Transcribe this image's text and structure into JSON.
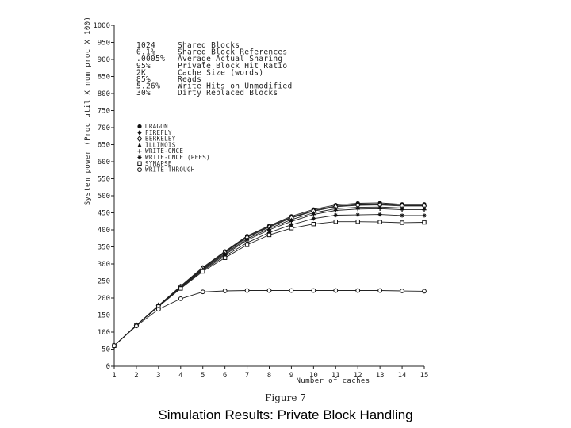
{
  "caption": "Simulation Results: Private Block Handling",
  "figure_label": "Figure 7",
  "chart_data": {
    "type": "line",
    "xlabel": "Number of caches",
    "ylabel": "System power (Proc util X num proc X 100)",
    "xlim": [
      1,
      15
    ],
    "ylim": [
      0,
      1000
    ],
    "x": [
      1,
      2,
      3,
      4,
      5,
      6,
      7,
      8,
      9,
      10,
      11,
      12,
      13,
      14,
      15
    ],
    "x_ticks": [
      "1",
      "2",
      "3",
      "4",
      "5",
      "6",
      "7",
      "8",
      "9",
      "10",
      "11",
      "12",
      "13",
      "14",
      "15"
    ],
    "y_ticks": [
      "0",
      "50",
      "100",
      "150",
      "200",
      "250",
      "300",
      "350",
      "400",
      "450",
      "500",
      "550",
      "600",
      "650",
      "700",
      "750",
      "800",
      "850",
      "900",
      "950",
      "1000"
    ],
    "grid": false,
    "legend_position": "upper-left",
    "parameters": [
      {
        "value": "1024",
        "label": "Shared Blocks"
      },
      {
        "value": "0.1%",
        "label": "Shared Block References"
      },
      {
        "value": ".0005%",
        "label": "Average Actual Sharing"
      },
      {
        "value": "95%",
        "label": "Private Block Hit Ratio"
      },
      {
        "value": "2K",
        "label": "Cache Size (words)"
      },
      {
        "value": "85%",
        "label": "Reads"
      },
      {
        "value": "5.26%",
        "label": "Write-Hits on Unmodified"
      },
      {
        "value": "30%",
        "label": "Dirty Replaced Blocks"
      }
    ],
    "series": [
      {
        "name": "DRAGON",
        "marker": "dot",
        "values": [
          60,
          120,
          178,
          235,
          290,
          337,
          382,
          412,
          440,
          460,
          473,
          478,
          479,
          475,
          475
        ]
      },
      {
        "name": "FIREFLY",
        "marker": "diamond",
        "values": [
          60,
          120,
          178,
          234,
          288,
          335,
          380,
          410,
          437,
          457,
          470,
          474,
          475,
          472,
          472
        ]
      },
      {
        "name": "BERKELEY",
        "marker": "diamond-open",
        "values": [
          60,
          120,
          178,
          233,
          287,
          333,
          378,
          408,
          435,
          455,
          468,
          472,
          473,
          470,
          470
        ]
      },
      {
        "name": "ILLINOIS",
        "marker": "triangle",
        "values": [
          60,
          120,
          177,
          232,
          285,
          330,
          374,
          404,
          430,
          450,
          462,
          466,
          467,
          464,
          464
        ]
      },
      {
        "name": "WRITE-ONCE",
        "marker": "plus",
        "values": [
          60,
          120,
          177,
          231,
          283,
          327,
          370,
          400,
          425,
          445,
          457,
          461,
          462,
          459,
          459
        ]
      },
      {
        "name": "WRITE-ONCE (PEES)",
        "marker": "star",
        "values": [
          60,
          120,
          176,
          230,
          281,
          323,
          362,
          392,
          415,
          433,
          443,
          444,
          445,
          442,
          442
        ]
      },
      {
        "name": "SYNAPSE",
        "marker": "square",
        "values": [
          60,
          120,
          175,
          228,
          278,
          318,
          356,
          385,
          405,
          417,
          424,
          424,
          423,
          421,
          422
        ]
      },
      {
        "name": "WRITE-THROUGH",
        "marker": "circle",
        "values": [
          60,
          118,
          167,
          198,
          218,
          221,
          222,
          222,
          222,
          222,
          222,
          222,
          222,
          221,
          220
        ]
      }
    ]
  }
}
